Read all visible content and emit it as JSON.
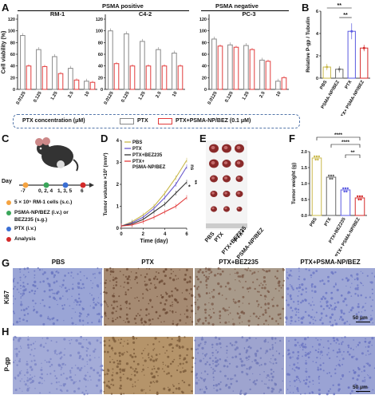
{
  "panels": {
    "A": "A",
    "B": "B",
    "C": "C",
    "D": "D",
    "E": "E",
    "F": "F",
    "G": "G",
    "H": "H"
  },
  "colors": {
    "ptx": "#888888",
    "combo": "#e23b3b",
    "pbs": "#c9b84a",
    "ptx_line": "#6a5acd",
    "bez": "#7a7ad8",
    "np": "#e23b3b"
  },
  "panelA": {
    "group_positive": "PSMA positive",
    "group_negative": "PSMA negative",
    "ylabel": "Cell viability (%)",
    "legend_title": "PTX concentration (μM)",
    "legend_ptx": "PTX",
    "legend_combo": "PTX+PSMA-NP/BEZ (0.1 μM)"
  },
  "panelB": {
    "sig1": "**",
    "sig2": "**"
  },
  "panelC": {
    "day_label": "Day",
    "days": [
      "-7",
      "0, 2, 4",
      "1, 3, 5",
      "6"
    ],
    "legend": [
      "5 × 10⁵ RM-1 cells (s.c.)",
      "PSMA-NP/BEZ (i.v.) or",
      "BEZ235 (s.g.)",
      "PTX (i.v.)",
      "Analysis"
    ]
  },
  "panelD": {
    "legend": [
      "PBS",
      "PTX",
      "PTX+BEZ235",
      "PTX+",
      "PSMA-NP/BEZ"
    ],
    "ns": "ns",
    "sig1": "*",
    "sig2": "**"
  },
  "panelE": {
    "rows": [
      "PBS",
      "PTX",
      "PTX+BEZ235",
      "PTX+",
      "PSMA-NP/BEZ"
    ]
  },
  "panelF": {
    "sig": [
      "****",
      "****",
      "**"
    ]
  },
  "panelG": {
    "cols": [
      "PBS",
      "PTX",
      "PTX+BEZ235",
      "PTX+PSMA-NP/BEZ"
    ],
    "row_label_G": "Ki67",
    "row_label_H": "P-gp",
    "scalebar": "50 μm"
  },
  "chart_data": [
    {
      "type": "bar",
      "title": "RM-1",
      "xlabel": "",
      "ylabel": "Cell viability (%)",
      "categories": [
        "0.0125",
        "0.125",
        "1.25",
        "2.5",
        "10"
      ],
      "series": [
        {
          "name": "PTX",
          "values": [
            92,
            68,
            56,
            36,
            14
          ]
        },
        {
          "name": "PTX+PSMA-NP/BEZ (0.1 μM)",
          "values": [
            40,
            39,
            27,
            16,
            12
          ]
        }
      ],
      "ylim": [
        0,
        120
      ]
    },
    {
      "type": "bar",
      "title": "C4-2",
      "xlabel": "",
      "ylabel": "",
      "categories": [
        "0.0125",
        "0.125",
        "1.25",
        "2.5",
        "10"
      ],
      "series": [
        {
          "name": "PTX",
          "values": [
            100,
            95,
            82,
            68,
            62
          ]
        },
        {
          "name": "PTX+PSMA-NP/BEZ (0.1 μM)",
          "values": [
            44,
            40,
            40,
            40,
            40
          ]
        }
      ],
      "ylim": [
        0,
        120
      ]
    },
    {
      "type": "bar",
      "title": "PC-3",
      "xlabel": "",
      "ylabel": "",
      "categories": [
        "0.0125",
        "0.125",
        "1.25",
        "2.5",
        "10"
      ],
      "series": [
        {
          "name": "PTX",
          "values": [
            86,
            76,
            75,
            50,
            14
          ]
        },
        {
          "name": "PTX+PSMA-NP/BEZ (0.1 μM)",
          "values": [
            74,
            72,
            68,
            48,
            20
          ]
        }
      ],
      "ylim": [
        0,
        120
      ]
    },
    {
      "type": "bar",
      "title": "",
      "xlabel": "",
      "ylabel": "Relative P-gp / Tubulin",
      "categories": [
        "PBS",
        "PSMA-NP/BEZ",
        "PTX",
        "PTX+ PSMA-NP/BEZ"
      ],
      "values": [
        1.0,
        0.8,
        4.2,
        2.7
      ],
      "ylim": [
        0,
        6
      ]
    },
    {
      "type": "line",
      "title": "",
      "xlabel": "Time (day)",
      "ylabel": "Tumor volume ×10³ (mm³)",
      "x": [
        0,
        1,
        2,
        3,
        4,
        5,
        6
      ],
      "series": [
        {
          "name": "PBS",
          "values": [
            0.1,
            0.3,
            0.6,
            1.0,
            1.6,
            2.3,
            3.1
          ]
        },
        {
          "name": "PTX",
          "values": [
            0.1,
            0.25,
            0.5,
            0.9,
            1.4,
            2.0,
            2.8
          ]
        },
        {
          "name": "PTX+BEZ235",
          "values": [
            0.1,
            0.2,
            0.4,
            0.75,
            1.1,
            1.6,
            2.1
          ]
        },
        {
          "name": "PTX+ PSMA-NP/BEZ",
          "values": [
            0.1,
            0.15,
            0.3,
            0.5,
            0.75,
            1.0,
            1.4
          ]
        }
      ],
      "xlim": [
        0,
        6
      ],
      "ylim": [
        0,
        4
      ]
    },
    {
      "type": "bar",
      "title": "",
      "xlabel": "",
      "ylabel": "Tumor weight (g)",
      "categories": [
        "PBS",
        "PTX",
        "PTX+BEZ235",
        "PTX+ PSMA-NP/BEZ"
      ],
      "values": [
        1.8,
        1.2,
        0.8,
        0.55
      ],
      "ylim": [
        0,
        2
      ]
    }
  ]
}
